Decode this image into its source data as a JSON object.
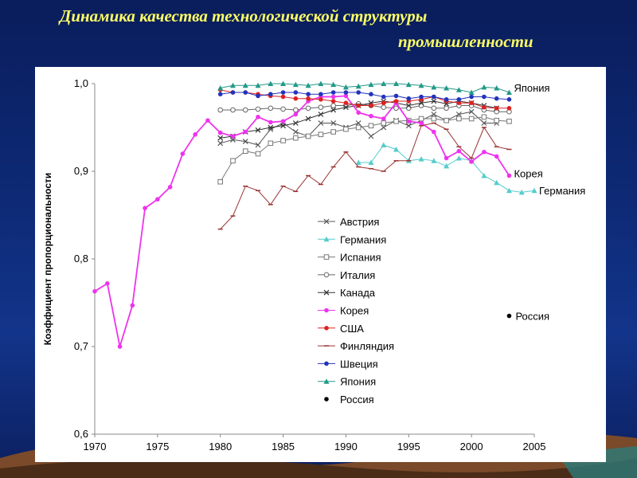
{
  "slide": {
    "title_line1": "Динамика качества технологической структуры",
    "title_line2": "промышленности"
  },
  "colors": {
    "background": "#0e2b78",
    "title": "#ffff66",
    "panel": "#ffffff"
  },
  "chart_data": {
    "type": "line",
    "title": "",
    "xlabel": "",
    "ylabel": "Коэффициент пропорциональности",
    "xlim": [
      1970,
      2005
    ],
    "ylim": [
      0.6,
      1.0
    ],
    "x_ticks": [
      "1970",
      "1975",
      "1980",
      "1985",
      "1990",
      "1995",
      "2000",
      "2005"
    ],
    "y_ticks": [
      "0,6",
      "0,7",
      "0,8",
      "0,9",
      "1,0"
    ],
    "grid": false,
    "legend_position": "right-center",
    "series": [
      {
        "name": "Австрия",
        "color": "#555555",
        "marker": "x",
        "line": true,
        "x": [
          1980,
          1981,
          1982,
          1983,
          1984,
          1985,
          1986,
          1987,
          1988,
          1989,
          1990,
          1991,
          1992,
          1993,
          1994,
          1995,
          1996,
          1997,
          1998,
          1999,
          2000,
          2001,
          2002,
          2003
        ],
        "y": [
          0.932,
          0.936,
          0.934,
          0.93,
          0.948,
          0.955,
          0.945,
          0.94,
          0.955,
          0.955,
          0.95,
          0.955,
          0.94,
          0.95,
          0.958,
          0.952,
          0.958,
          0.965,
          0.958,
          0.965,
          0.968,
          0.955,
          0.955,
          null
        ]
      },
      {
        "name": "Германия",
        "color": "#55cccc",
        "marker": "triangle",
        "line": true,
        "x": [
          1991,
          1992,
          1993,
          1994,
          1995,
          1996,
          1997,
          1998,
          1999,
          2000,
          2001,
          2002,
          2003,
          2004,
          2005
        ],
        "y": [
          0.91,
          0.91,
          0.93,
          0.925,
          0.912,
          0.914,
          0.912,
          0.906,
          0.915,
          0.912,
          0.895,
          0.887,
          0.878,
          0.876,
          0.878
        ]
      },
      {
        "name": "Испания",
        "color": "#777777",
        "marker": "square",
        "line": true,
        "x": [
          1980,
          1981,
          1982,
          1983,
          1984,
          1985,
          1986,
          1987,
          1988,
          1989,
          1990,
          1991,
          1992,
          1993,
          1994,
          1995,
          1996,
          1997,
          1998,
          1999,
          2000,
          2001,
          2002,
          2003
        ],
        "y": [
          0.888,
          0.912,
          0.923,
          0.92,
          0.932,
          0.935,
          0.938,
          0.94,
          0.942,
          0.945,
          0.948,
          0.95,
          0.952,
          0.955,
          0.957,
          0.958,
          0.96,
          0.96,
          0.958,
          0.96,
          0.96,
          0.962,
          0.958,
          0.957
        ]
      },
      {
        "name": "Италия",
        "color": "#666666",
        "marker": "circle-open",
        "line": true,
        "x": [
          1980,
          1981,
          1982,
          1983,
          1984,
          1985,
          1986,
          1987,
          1988,
          1989,
          1990,
          1991,
          1992,
          1993,
          1994,
          1995,
          1996,
          1997,
          1998,
          1999,
          2000,
          2001,
          2002,
          2003
        ],
        "y": [
          0.97,
          0.97,
          0.97,
          0.971,
          0.972,
          0.971,
          0.97,
          0.972,
          0.973,
          0.975,
          0.975,
          0.977,
          0.975,
          0.973,
          0.972,
          0.972,
          0.975,
          0.972,
          0.972,
          0.975,
          0.975,
          0.97,
          0.968,
          0.968
        ]
      },
      {
        "name": "Канада",
        "color": "#333333",
        "marker": "x",
        "line": true,
        "x": [
          1980,
          1981,
          1982,
          1983,
          1984,
          1985,
          1986,
          1987,
          1988,
          1989,
          1990,
          1991,
          1992,
          1993,
          1994,
          1995,
          1996,
          1997,
          1998,
          1999,
          2000,
          2001,
          2002,
          2003
        ],
        "y": [
          0.938,
          0.94,
          0.945,
          0.947,
          0.95,
          0.952,
          0.955,
          0.96,
          0.965,
          0.97,
          0.973,
          0.975,
          0.978,
          0.98,
          0.978,
          0.975,
          0.978,
          0.98,
          0.977,
          0.98,
          0.978,
          0.975,
          0.972,
          null
        ]
      },
      {
        "name": "Корея",
        "color": "#ee33ee",
        "marker": "circle-filled",
        "line": true,
        "x": [
          1970,
          1971,
          1972,
          1973,
          1974,
          1975,
          1976,
          1977,
          1978,
          1979,
          1980,
          1981,
          1982,
          1983,
          1984,
          1985,
          1986,
          1987,
          1988,
          1989,
          1990,
          1991,
          1992,
          1993,
          1994,
          1995,
          1996,
          1997,
          1998,
          1999,
          2000,
          2001,
          2002,
          2003
        ],
        "y": [
          0.763,
          0.772,
          0.7,
          0.747,
          0.858,
          0.868,
          0.882,
          0.92,
          0.942,
          0.958,
          0.944,
          0.94,
          0.945,
          0.962,
          0.956,
          0.957,
          0.965,
          0.98,
          0.985,
          0.985,
          0.986,
          0.967,
          0.963,
          0.96,
          0.978,
          0.957,
          0.955,
          0.945,
          0.915,
          0.923,
          0.911,
          0.922,
          0.917,
          0.895
        ]
      },
      {
        "name": "США",
        "color": "#dd2222",
        "marker": "circle-filled",
        "line": true,
        "x": [
          1980,
          1981,
          1982,
          1983,
          1984,
          1985,
          1986,
          1987,
          1988,
          1989,
          1990,
          1991,
          1992,
          1993,
          1994,
          1995,
          1996,
          1997,
          1998,
          1999,
          2000,
          2001,
          2002,
          2003
        ],
        "y": [
          0.993,
          0.99,
          0.99,
          0.988,
          0.986,
          0.985,
          0.983,
          0.983,
          0.982,
          0.98,
          0.978,
          0.975,
          0.975,
          0.978,
          0.98,
          0.98,
          0.982,
          0.985,
          0.98,
          0.978,
          0.978,
          0.973,
          0.972,
          0.972
        ]
      },
      {
        "name": "Финляндия",
        "color": "#993333",
        "marker": "dash",
        "line": true,
        "x": [
          1980,
          1981,
          1982,
          1983,
          1984,
          1985,
          1986,
          1987,
          1988,
          1989,
          1990,
          1991,
          1992,
          1993,
          1994,
          1995,
          1996,
          1997,
          1998,
          1999,
          2000,
          2001,
          2002,
          2003
        ],
        "y": [
          0.834,
          0.849,
          0.883,
          0.878,
          0.862,
          0.883,
          0.877,
          0.895,
          0.885,
          0.905,
          0.922,
          0.905,
          0.903,
          0.9,
          0.912,
          0.912,
          0.952,
          0.955,
          0.948,
          0.928,
          0.915,
          0.95,
          0.928,
          0.925
        ]
      },
      {
        "name": "Швеция",
        "color": "#2233bb",
        "marker": "circle-filled",
        "line": true,
        "x": [
          1980,
          1981,
          1982,
          1983,
          1984,
          1985,
          1986,
          1987,
          1988,
          1989,
          1990,
          1991,
          1992,
          1993,
          1994,
          1995,
          1996,
          1997,
          1998,
          1999,
          2000,
          2001,
          2002,
          2003
        ],
        "y": [
          0.988,
          0.99,
          0.99,
          0.986,
          0.988,
          0.99,
          0.99,
          0.988,
          0.988,
          0.99,
          0.99,
          0.99,
          0.988,
          0.985,
          0.986,
          0.983,
          0.985,
          0.985,
          0.982,
          0.982,
          0.985,
          0.985,
          0.983,
          0.982
        ]
      },
      {
        "name": "Япония",
        "color": "#229988",
        "marker": "triangle",
        "line": true,
        "x": [
          1980,
          1981,
          1982,
          1983,
          1984,
          1985,
          1986,
          1987,
          1988,
          1989,
          1990,
          1991,
          1992,
          1993,
          1994,
          1995,
          1996,
          1997,
          1998,
          1999,
          2000,
          2001,
          2002,
          2003
        ],
        "y": [
          0.995,
          0.998,
          0.998,
          0.998,
          1.0,
          1.0,
          0.999,
          0.998,
          1.0,
          0.999,
          0.996,
          0.997,
          0.999,
          1.0,
          1.0,
          0.999,
          0.998,
          0.996,
          0.995,
          0.993,
          0.99,
          0.996,
          0.995,
          0.99
        ]
      },
      {
        "name": "Россия",
        "color": "#000000",
        "marker": "circle-filled",
        "line": false,
        "x": [
          2003
        ],
        "y": [
          0.735
        ]
      }
    ],
    "end_labels": [
      {
        "text": "Япония",
        "series": "Япония"
      },
      {
        "text": "Корея",
        "series": "Корея"
      },
      {
        "text": "Германия",
        "series": "Германия"
      },
      {
        "text": "Россия",
        "series": "Россия"
      }
    ]
  }
}
